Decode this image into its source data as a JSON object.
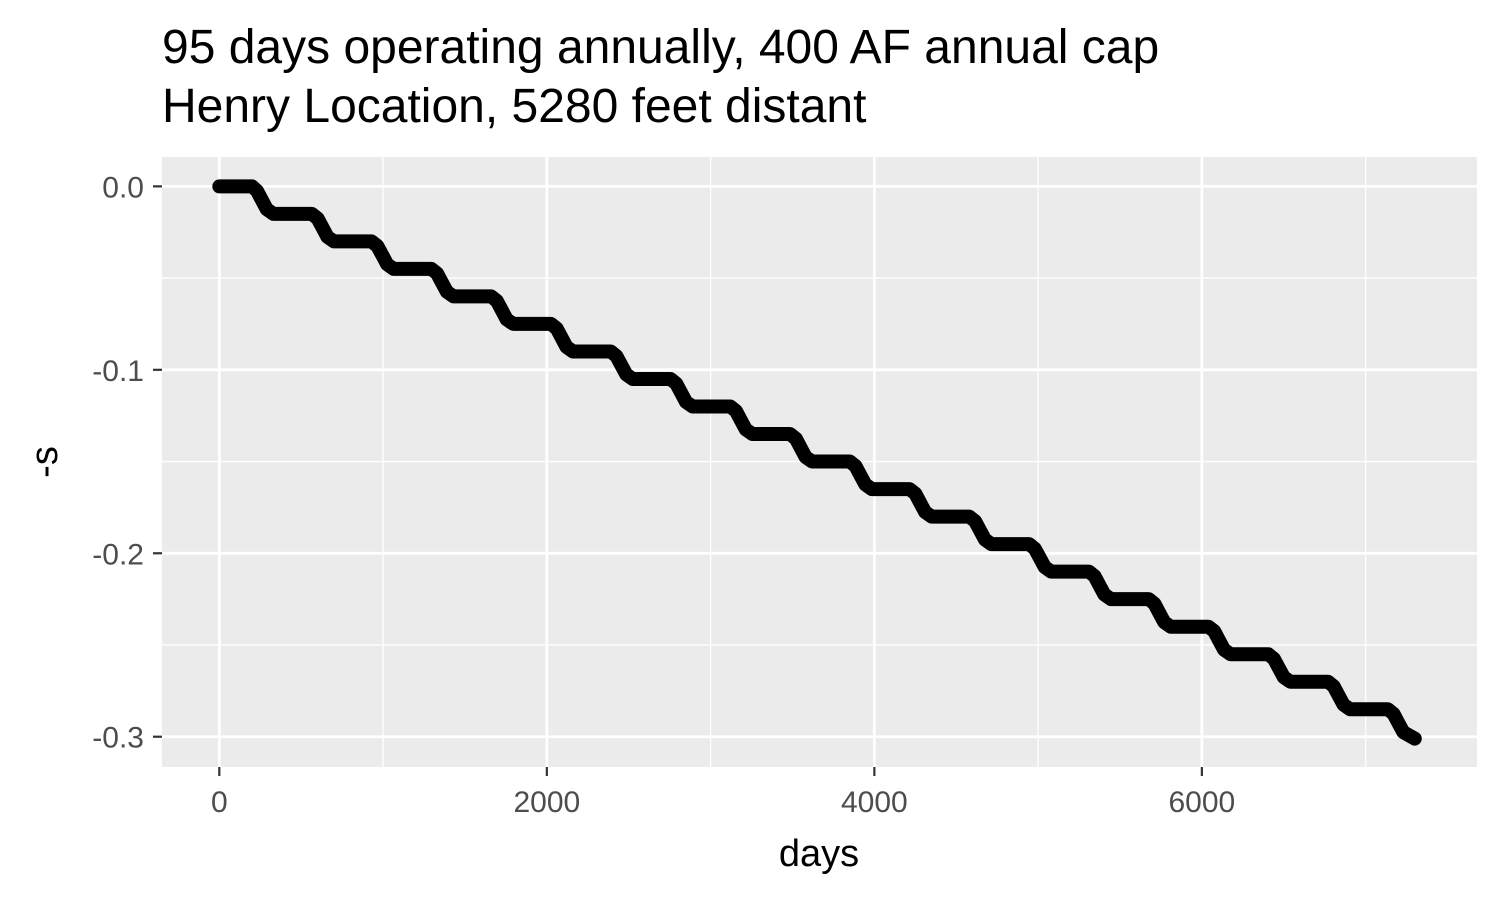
{
  "chart_data": {
    "type": "line",
    "title_lines": [
      "95 days operating annually, 400 AF annual cap",
      "Henry Location, 5280 feet distant"
    ],
    "xlabel": "days",
    "ylabel": "-s",
    "xlim": [
      -350,
      7680
    ],
    "ylim": [
      -0.3165,
      0.016
    ],
    "x_ticks": [
      0,
      2000,
      4000,
      6000
    ],
    "x_tick_labels": [
      "0",
      "2000",
      "4000",
      "6000"
    ],
    "x_minor_ticks": [
      1000,
      3000,
      5000,
      7000
    ],
    "y_ticks": [
      0.0,
      -0.1,
      -0.2,
      -0.3
    ],
    "y_tick_labels": [
      "0.0",
      "-0.1",
      "-0.2",
      "-0.3"
    ],
    "y_minor_ticks": [
      -0.05,
      -0.15,
      -0.25
    ],
    "grid": true,
    "legend": "none",
    "series": [
      {
        "color": "#000000",
        "points": [
          [
            0,
            0.0
          ],
          [
            200,
            0.0
          ],
          [
            230,
            -0.0025
          ],
          [
            260,
            -0.0075
          ],
          [
            290,
            -0.0125
          ],
          [
            330,
            -0.015
          ],
          [
            565,
            -0.015
          ],
          [
            600,
            -0.0175
          ],
          [
            630,
            -0.0225
          ],
          [
            660,
            -0.0275
          ],
          [
            700,
            -0.03
          ],
          [
            930,
            -0.03
          ],
          [
            965,
            -0.0325
          ],
          [
            995,
            -0.0375
          ],
          [
            1025,
            -0.0425
          ],
          [
            1065,
            -0.045
          ],
          [
            1295,
            -0.045
          ],
          [
            1330,
            -0.0475
          ],
          [
            1360,
            -0.0525
          ],
          [
            1390,
            -0.0575
          ],
          [
            1430,
            -0.06
          ],
          [
            1660,
            -0.06
          ],
          [
            1695,
            -0.0625
          ],
          [
            1725,
            -0.0675
          ],
          [
            1755,
            -0.0725
          ],
          [
            1795,
            -0.075
          ],
          [
            2025,
            -0.075
          ],
          [
            2060,
            -0.0775
          ],
          [
            2090,
            -0.0825
          ],
          [
            2120,
            -0.0875
          ],
          [
            2160,
            -0.09
          ],
          [
            2390,
            -0.09
          ],
          [
            2425,
            -0.0925
          ],
          [
            2455,
            -0.0975
          ],
          [
            2485,
            -0.1025
          ],
          [
            2525,
            -0.105
          ],
          [
            2755,
            -0.105
          ],
          [
            2790,
            -0.1075
          ],
          [
            2820,
            -0.1125
          ],
          [
            2850,
            -0.1175
          ],
          [
            2890,
            -0.12
          ],
          [
            3120,
            -0.12
          ],
          [
            3155,
            -0.1225
          ],
          [
            3185,
            -0.1275
          ],
          [
            3215,
            -0.1325
          ],
          [
            3255,
            -0.135
          ],
          [
            3485,
            -0.135
          ],
          [
            3520,
            -0.1375
          ],
          [
            3550,
            -0.1425
          ],
          [
            3580,
            -0.1475
          ],
          [
            3620,
            -0.15
          ],
          [
            3850,
            -0.15
          ],
          [
            3885,
            -0.1525
          ],
          [
            3915,
            -0.1575
          ],
          [
            3945,
            -0.1625
          ],
          [
            3985,
            -0.165
          ],
          [
            4215,
            -0.165
          ],
          [
            4250,
            -0.1675
          ],
          [
            4280,
            -0.1725
          ],
          [
            4310,
            -0.1775
          ],
          [
            4350,
            -0.18
          ],
          [
            4580,
            -0.18
          ],
          [
            4615,
            -0.1825
          ],
          [
            4645,
            -0.1875
          ],
          [
            4675,
            -0.1925
          ],
          [
            4715,
            -0.195
          ],
          [
            4945,
            -0.195
          ],
          [
            4980,
            -0.1975
          ],
          [
            5010,
            -0.2025
          ],
          [
            5040,
            -0.2075
          ],
          [
            5080,
            -0.21
          ],
          [
            5310,
            -0.21
          ],
          [
            5345,
            -0.2125
          ],
          [
            5375,
            -0.2175
          ],
          [
            5405,
            -0.2225
          ],
          [
            5445,
            -0.225
          ],
          [
            5675,
            -0.225
          ],
          [
            5710,
            -0.2275
          ],
          [
            5740,
            -0.2325
          ],
          [
            5770,
            -0.2375
          ],
          [
            5810,
            -0.24
          ],
          [
            6040,
            -0.24
          ],
          [
            6075,
            -0.2425
          ],
          [
            6105,
            -0.2475
          ],
          [
            6135,
            -0.2525
          ],
          [
            6175,
            -0.255
          ],
          [
            6405,
            -0.255
          ],
          [
            6440,
            -0.2575
          ],
          [
            6470,
            -0.2625
          ],
          [
            6500,
            -0.2675
          ],
          [
            6540,
            -0.27
          ],
          [
            6770,
            -0.27
          ],
          [
            6805,
            -0.2725
          ],
          [
            6835,
            -0.2775
          ],
          [
            6865,
            -0.2825
          ],
          [
            6905,
            -0.285
          ],
          [
            7135,
            -0.285
          ],
          [
            7170,
            -0.2875
          ],
          [
            7200,
            -0.2925
          ],
          [
            7230,
            -0.2975
          ],
          [
            7300,
            -0.301
          ]
        ]
      }
    ]
  }
}
